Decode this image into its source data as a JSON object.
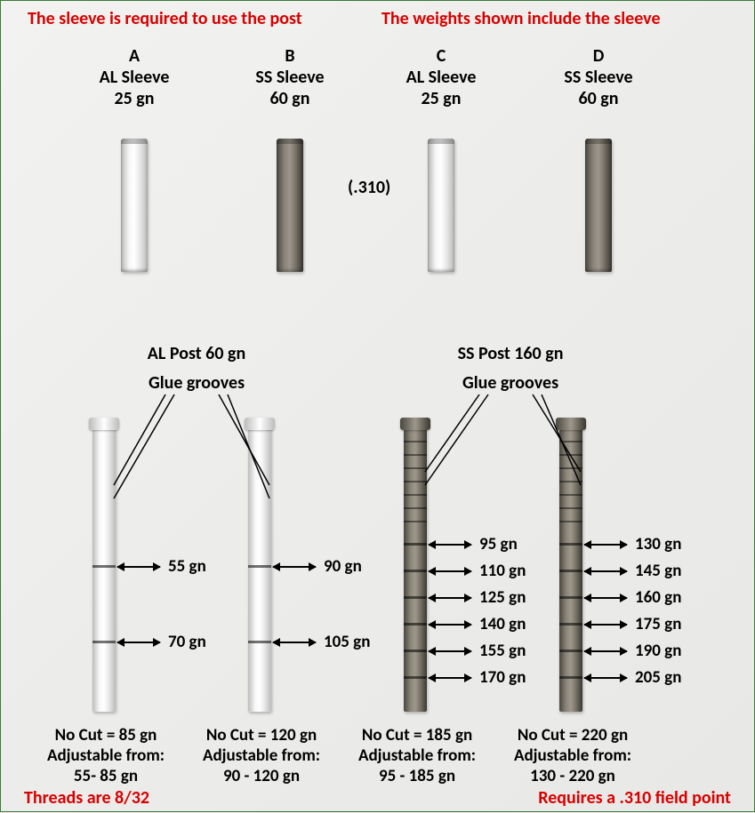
{
  "topnotes": {
    "left": "The sleeve is required to use the post",
    "right": "The weights shown include the sleeve"
  },
  "sleeves": {
    "A": {
      "letter": "A",
      "name": "AL Sleeve",
      "weight": "25 gn"
    },
    "B": {
      "letter": "B",
      "name": "SS Sleeve",
      "weight": "60 gn"
    },
    "C": {
      "letter": "C",
      "name": "AL Sleeve",
      "weight": "25 gn"
    },
    "D": {
      "letter": "D",
      "name": "SS Sleeve",
      "weight": "60 gn"
    }
  },
  "diameter": "(.310)",
  "posts": {
    "left": {
      "title": "AL Post 60 gn",
      "grooves": "Glue grooves"
    },
    "right": {
      "title": "SS Post 160 gn",
      "grooves": "Glue grooves"
    }
  },
  "alpostA": {
    "marks": [
      "55 gn",
      "70 gn"
    ],
    "nocut": "No Cut = 85 gn",
    "adj1": "Adjustable from:",
    "adj2": "55- 85 gn"
  },
  "alpostB": {
    "marks": [
      "90 gn",
      "105 gn"
    ],
    "nocut": "No Cut = 120 gn",
    "adj1": "Adjustable from:",
    "adj2": "90 - 120 gn"
  },
  "sspostC": {
    "marks": [
      "95 gn",
      "110 gn",
      "125 gn",
      "140 gn",
      "155 gn",
      "170 gn"
    ],
    "nocut": "No Cut = 185 gn",
    "adj1": "Adjustable from:",
    "adj2": "95 - 185 gn"
  },
  "sspostD": {
    "marks": [
      "130 gn",
      "145 gn",
      "160 gn",
      "175 gn",
      "190 gn",
      "205 gn"
    ],
    "nocut": "No Cut = 220 gn",
    "adj1": "Adjustable from:",
    "adj2": "130 - 220 gn"
  },
  "bottom": {
    "threads": "Threads are 8/32",
    "fieldpoint": "Requires a .310 field point"
  },
  "layout": {
    "col": {
      "A": 150,
      "B": 325,
      "C": 495,
      "D": 672
    },
    "sleeveTop": 155,
    "postCol": {
      "P1": 115,
      "P2": 290,
      "P3": 465,
      "P4": 640
    },
    "postTop": 475,
    "alGrooves": [
      160,
      245
    ],
    "ssGrooves": [
      135,
      165,
      195,
      225,
      255,
      285
    ],
    "ssThin": [
      20,
      35,
      50,
      65,
      80,
      95,
      110
    ]
  },
  "colors": {
    "red": "#d80000",
    "black": "#000000",
    "bg": "#f0f0ee"
  }
}
